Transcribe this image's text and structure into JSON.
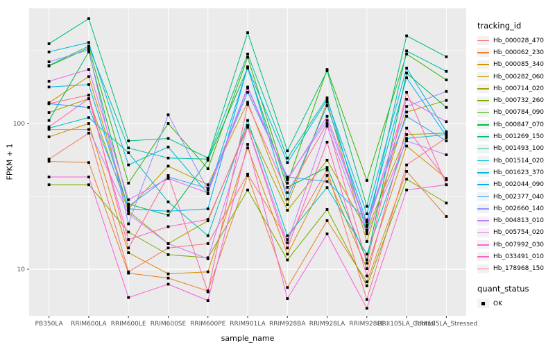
{
  "legend": {
    "tracking_title": "tracking_id",
    "quant_title": "quant_status",
    "quant_items": [
      "OK"
    ]
  },
  "chart_data": {
    "type": "line",
    "title": "",
    "xlabel": "sample_name",
    "ylabel": "FPKM + 1",
    "y_scale": "log10",
    "y_ticks": [
      10,
      100
    ],
    "y_minor_gridlines": [
      31.62,
      316.23
    ],
    "ylim_approx": [
      4.8,
      620
    ],
    "panel_bg": "#EBEBEB",
    "grid_color": "#FFFFFF",
    "point_shape": "filled-square",
    "point_color": "#000000",
    "legend_position": "right",
    "categories": [
      "PB350LA",
      "RRIM600LA",
      "RRIM600LE",
      "RRIM600SE",
      "RRIM600PE",
      "RRIM901LA",
      "RRIM928BA",
      "RRIM928LA",
      "RRIM928LE",
      "RRII105LA_Control",
      "RRII105LA_Stressed"
    ],
    "series": [
      {
        "name": "Hb_000028_470",
        "color": "#F8766D",
        "values": [
          57,
          86,
          9.6,
          14,
          15,
          45,
          16,
          48,
          6.2,
          52,
          80
        ]
      },
      {
        "name": "Hb_000062_230",
        "color": "#EA8331",
        "values": [
          55,
          54,
          9.4,
          8.7,
          7.1,
          44,
          7.5,
          21.6,
          8.2,
          47,
          23
        ]
      },
      {
        "name": "Hb_000085_340",
        "color": "#D89000",
        "values": [
          81,
          100,
          13,
          9.3,
          9.6,
          68,
          12.7,
          44,
          10.1,
          70,
          42
        ]
      },
      {
        "name": "Hb_000282_060",
        "color": "#C09B00",
        "values": [
          139,
          210,
          26,
          51,
          38,
          140,
          27.7,
          140,
          15.5,
          120,
          144
        ]
      },
      {
        "name": "Hb_000714_020",
        "color": "#A3A500",
        "values": [
          119,
          148,
          25,
          15,
          21.5,
          97,
          25.4,
          56,
          18.6,
          84,
          86
        ]
      },
      {
        "name": "Hb_000732_260",
        "color": "#7CAE00",
        "values": [
          38,
          38,
          18,
          12.6,
          12,
          35,
          11.6,
          25.7,
          7.7,
          41.5,
          28.5
        ]
      },
      {
        "name": "Hb_000784_090",
        "color": "#39B600",
        "values": [
          248,
          330,
          39,
          100,
          49,
          285,
          39,
          235,
          40.7,
          300,
          199
        ]
      },
      {
        "name": "Hb_000847_070",
        "color": "#00BB4E",
        "values": [
          105,
          310,
          28,
          23.5,
          56,
          240,
          36.5,
          50,
          11.6,
          222,
          129
        ]
      },
      {
        "name": "Hb_001269_150",
        "color": "#00BF7D",
        "values": [
          353,
          524,
          76,
          79,
          58,
          420,
          65,
          230,
          27,
          400,
          287
        ]
      },
      {
        "name": "Hb_001493_100",
        "color": "#00C1A3",
        "values": [
          250,
          340,
          68,
          58,
          57,
          300,
          58,
          150,
          18,
          315,
          228
        ]
      },
      {
        "name": "Hb_001514_020",
        "color": "#00BFC4",
        "values": [
          93,
          110,
          63,
          29,
          17,
          105,
          17,
          36.4,
          12.7,
          79,
          84
        ]
      },
      {
        "name": "Hb_001623_370",
        "color": "#00BAE0",
        "values": [
          310,
          360,
          52,
          69,
          33,
          243,
          54,
          145,
          24,
          240,
          88
        ]
      },
      {
        "name": "Hb_002044_090",
        "color": "#00B0F6",
        "values": [
          178,
          185,
          26,
          25,
          26,
          245,
          30.3,
          133,
          21,
          206,
          82
        ]
      },
      {
        "name": "Hb_002377_040",
        "color": "#35A2FF",
        "values": [
          137,
          129,
          27,
          43,
          36,
          164,
          43,
          40,
          21.8,
          112,
          76
        ]
      },
      {
        "name": "Hb_002660_140",
        "color": "#9590FF",
        "values": [
          265,
          320,
          20.5,
          115,
          35,
          178,
          42,
          105,
          19.6,
          131,
          166
        ]
      },
      {
        "name": "Hb_004813_010",
        "color": "#C77CFF",
        "values": [
          91,
          91,
          24,
          15,
          11.8,
          95,
          15.2,
          96,
          17.5,
          76,
          61
        ]
      },
      {
        "name": "Hb_005754_020",
        "color": "#E76BF3",
        "values": [
          195,
          235,
          30,
          42,
          33.4,
          175,
          41,
          112,
          20,
          147,
          103
        ]
      },
      {
        "name": "Hb_007992_030",
        "color": "#FA62DB",
        "values": [
          43,
          43,
          6.4,
          7.9,
          6.1,
          72,
          6.3,
          17.5,
          5.4,
          35,
          38
        ]
      },
      {
        "name": "Hb_033491_010",
        "color": "#FF62BC",
        "values": [
          95,
          148,
          16,
          19.6,
          22,
          94,
          14,
          74.5,
          9,
          93,
          41
        ]
      },
      {
        "name": "Hb_178968_150",
        "color": "#FF6A98",
        "values": [
          137,
          157,
          14,
          44,
          7,
          135,
          33.6,
          100,
          11,
          164,
          38
        ]
      }
    ]
  }
}
